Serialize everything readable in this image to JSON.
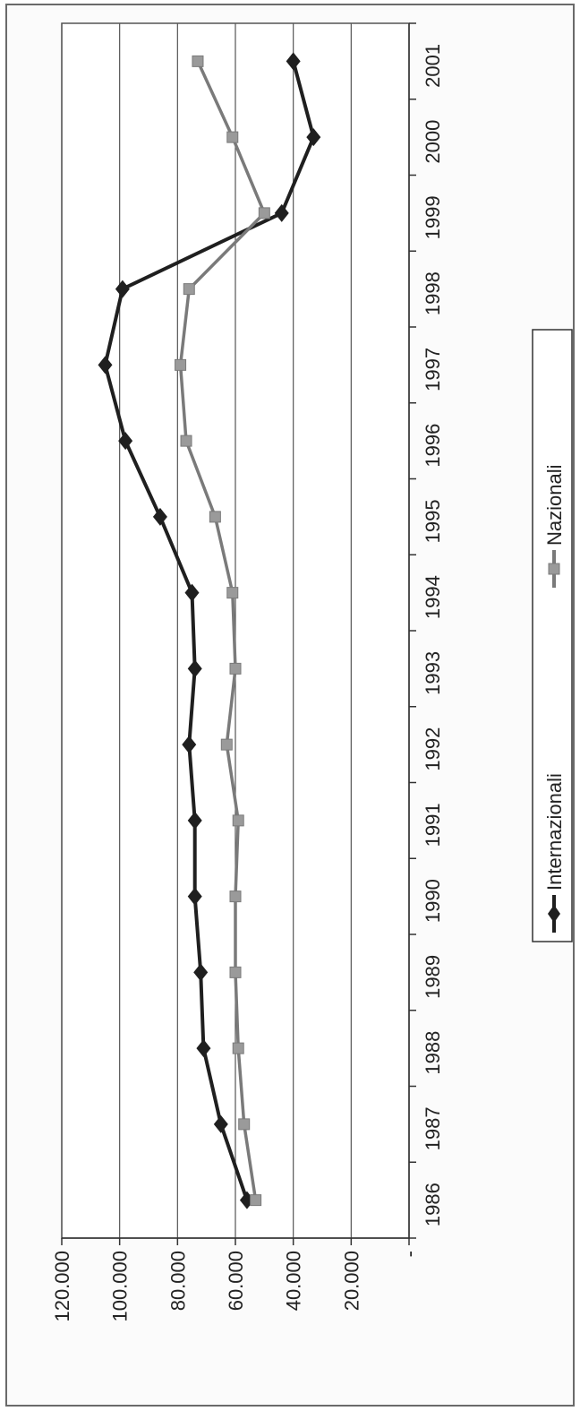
{
  "chart_data": {
    "type": "line",
    "title": "",
    "xlabel": "",
    "ylabel": "",
    "x": [
      1986,
      1987,
      1988,
      1989,
      1990,
      1991,
      1992,
      1993,
      1994,
      1995,
      1996,
      1997,
      1998,
      1999,
      2000,
      2001
    ],
    "x_tick_labels": [
      "1986",
      "1987",
      "1988",
      "1989",
      "1990",
      "1991",
      "1992",
      "1993",
      "1994",
      "1995",
      "1996",
      "1997",
      "1998",
      "1999",
      "2000",
      "2001"
    ],
    "y_tick_labels": [
      "-",
      "20.000",
      "40.000",
      "60.000",
      "80.000",
      "100.000",
      "120.000"
    ],
    "y_ticks": [
      0,
      20000,
      40000,
      60000,
      80000,
      100000,
      120000
    ],
    "ylim": [
      0,
      120000
    ],
    "grid": true,
    "legend_position": "bottom",
    "series": [
      {
        "name": "Internazionali",
        "color": "#1f1f1f",
        "marker": "diamond",
        "values": [
          56000,
          65000,
          71000,
          72000,
          74000,
          74000,
          76000,
          74000,
          75000,
          86000,
          98000,
          105000,
          99000,
          44000,
          33000,
          40000
        ]
      },
      {
        "name": "Nazionali",
        "color": "#7a7a7a",
        "marker": "square",
        "values": [
          53000,
          57000,
          59000,
          60000,
          60000,
          59000,
          63000,
          60000,
          61000,
          67000,
          77000,
          79000,
          76000,
          50000,
          61000,
          73000
        ]
      }
    ]
  }
}
